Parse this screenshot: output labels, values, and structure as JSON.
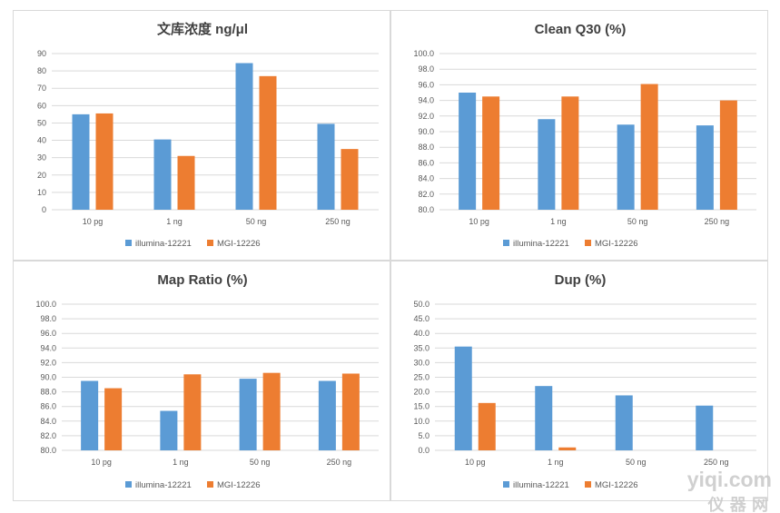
{
  "colors": {
    "illumina": "#5b9bd5",
    "mgi": "#ed7d31",
    "grid": "#d9d9d9",
    "text": "#595959"
  },
  "legend": [
    "illumina-12221",
    "MGI-12226"
  ],
  "watermark": {
    "text": "yiqi.com",
    "subtext": "仪 器 网"
  },
  "chart_data": [
    {
      "type": "bar",
      "title": "文库浓度 ng/μl",
      "categories": [
        "10 pg",
        "1 ng",
        "50 ng",
        "250 ng"
      ],
      "ylim": [
        0,
        90
      ],
      "ystep": 10,
      "decimals": 0,
      "grid": true,
      "legend_position": "bottom",
      "series": [
        {
          "name": "illumina-12221",
          "values": [
            55,
            40.5,
            84.5,
            49.5
          ]
        },
        {
          "name": "MGI-12226",
          "values": [
            55.5,
            31,
            77,
            35
          ]
        }
      ]
    },
    {
      "type": "bar",
      "title": "Clean Q30 (%)",
      "categories": [
        "10 pg",
        "1 ng",
        "50 ng",
        "250 ng"
      ],
      "ylim": [
        80,
        100
      ],
      "ystep": 2,
      "decimals": 1,
      "grid": true,
      "legend_position": "bottom",
      "series": [
        {
          "name": "illumina-12221",
          "values": [
            95.0,
            91.6,
            90.9,
            90.8
          ]
        },
        {
          "name": "MGI-12226",
          "values": [
            94.5,
            94.5,
            96.1,
            94.0
          ]
        }
      ]
    },
    {
      "type": "bar",
      "title": "Map Ratio (%)",
      "categories": [
        "10 pg",
        "1 ng",
        "50 ng",
        "250 ng"
      ],
      "ylim": [
        80,
        100
      ],
      "ystep": 2,
      "decimals": 1,
      "grid": true,
      "legend_position": "bottom",
      "series": [
        {
          "name": "illumina-12221",
          "values": [
            89.5,
            85.4,
            89.8,
            89.5
          ]
        },
        {
          "name": "MGI-12226",
          "values": [
            88.5,
            90.4,
            90.6,
            90.5
          ]
        }
      ]
    },
    {
      "type": "bar",
      "title": "Dup (%)",
      "categories": [
        "10 pg",
        "1 ng",
        "50 ng",
        "250 ng"
      ],
      "ylim": [
        0,
        50
      ],
      "ystep": 5,
      "decimals": 1,
      "grid": true,
      "legend_position": "bottom",
      "series": [
        {
          "name": "illumina-12221",
          "values": [
            35.5,
            22.0,
            18.8,
            15.3
          ]
        },
        {
          "name": "MGI-12226",
          "values": [
            16.2,
            1.0,
            0,
            0
          ]
        }
      ]
    }
  ]
}
